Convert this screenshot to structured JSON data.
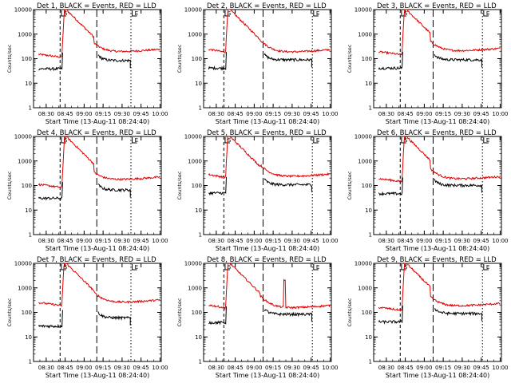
{
  "chart_data": {
    "type": "line",
    "grid": false,
    "legend": "in title",
    "series_names": [
      "Events",
      "LLD"
    ],
    "series_colors": {
      "events": "#000000",
      "lld": "#e00000"
    },
    "xlabel": "Start Time (13-Aug-11 08:24:40)",
    "ylabel": "Counts/sec",
    "x_ticks": [
      "08:30",
      "08:45",
      "09:00",
      "09:15",
      "09:30",
      "09:45",
      "10:00"
    ],
    "y_ticks": [
      "1",
      "10",
      "100",
      "1000",
      "10000"
    ],
    "xlim_minutes_after_start": [
      -5,
      96
    ],
    "ylim": [
      1,
      10000
    ],
    "yscale": "log",
    "markers": {
      "S": "S",
      "E": "E"
    },
    "panels": [
      {
        "title": "Det 1, BLACK = Events, RED = LLD",
        "lld_base": 150,
        "lld_end": 240,
        "events_level": 70,
        "drop_min": 34,
        "gap_t": 7,
        "spike_t": null,
        "lines": [
          16,
          45,
          72
        ]
      },
      {
        "title": "Det 2, BLACK = Events, RED = LLD",
        "lld_base": 240,
        "lld_end": 230,
        "events_level": 75,
        "drop_min": 44,
        "gap_t": 12,
        "spike_t": null,
        "lines": [
          11,
          42,
          81
        ]
      },
      {
        "title": "Det 3, BLACK = Events, RED = LLD",
        "lld_base": 190,
        "lld_end": 260,
        "events_level": 75,
        "drop_min": 44,
        "gap_t": 12,
        "spike_t": null,
        "lines": [
          16,
          42,
          81
        ]
      },
      {
        "title": "Det 4, BLACK = Events, RED = LLD",
        "lld_base": 110,
        "lld_end": 220,
        "events_level": 55,
        "drop_min": 34,
        "gap_t": 7,
        "spike_t": null,
        "lines": [
          16,
          45,
          72
        ]
      },
      {
        "title": "Det 5, BLACK = Events, RED = LLD",
        "lld_base": 280,
        "lld_end": 290,
        "events_level": 90,
        "drop_min": 44,
        "gap_t": 12,
        "spike_t": null,
        "lines": [
          11,
          42,
          81
        ]
      },
      {
        "title": "Det 6, BLACK = Events, RED = LLD",
        "lld_base": 190,
        "lld_end": 230,
        "events_level": 85,
        "drop_min": 44,
        "gap_t": 12,
        "spike_t": null,
        "lines": [
          16,
          42,
          81
        ]
      },
      {
        "title": "Det 7, BLACK = Events, RED = LLD",
        "lld_base": 250,
        "lld_end": 320,
        "events_level": 50,
        "drop_min": 34,
        "gap_t": 7,
        "spike_t": null,
        "lines": [
          16,
          45,
          72
        ]
      },
      {
        "title": "Det 8, BLACK = Events, RED = LLD",
        "lld_base": 200,
        "lld_end": 190,
        "events_level": 70,
        "drop_min": 44,
        "gap_t": 12,
        "spike_t": 59,
        "lines": [
          11,
          42,
          81
        ]
      },
      {
        "title": "Det 9, BLACK = Events, RED = LLD",
        "lld_base": 160,
        "lld_end": 230,
        "events_level": 75,
        "drop_min": 44,
        "gap_t": 12,
        "spike_t": null,
        "lines": [
          16,
          42,
          81
        ]
      }
    ]
  }
}
